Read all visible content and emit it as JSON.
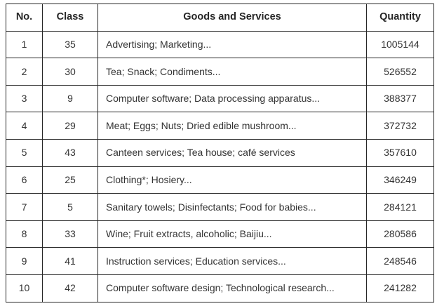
{
  "colors": {
    "border": "#262626",
    "text": "#333333",
    "background": "#ffffff"
  },
  "table": {
    "columns": {
      "no": "No.",
      "class": "Class",
      "goods": "Goods and Services",
      "quantity": "Quantity"
    },
    "rows": [
      {
        "no": "1",
        "class": "35",
        "goods": "Advertising; Marketing...",
        "quantity": "1005144"
      },
      {
        "no": "2",
        "class": "30",
        "goods": "Tea; Snack; Condiments...",
        "quantity": "526552"
      },
      {
        "no": "3",
        "class": "9",
        "goods": "Computer software; Data processing apparatus...",
        "quantity": "388377"
      },
      {
        "no": "4",
        "class": "29",
        "goods": "Meat; Eggs; Nuts; Dried edible mushroom...",
        "quantity": "372732"
      },
      {
        "no": "5",
        "class": "43",
        "goods": "Canteen services; Tea house; café services",
        "quantity": "357610"
      },
      {
        "no": "6",
        "class": "25",
        "goods": "Clothing*; Hosiery...",
        "quantity": "346249"
      },
      {
        "no": "7",
        "class": "5",
        "goods": "Sanitary towels; Disinfectants; Food for babies...",
        "quantity": "284121"
      },
      {
        "no": "8",
        "class": "33",
        "goods": "Wine; Fruit extracts, alcoholic; Baijiu...",
        "quantity": "280586"
      },
      {
        "no": "9",
        "class": "41",
        "goods": "Instruction services; Education services...",
        "quantity": "248546"
      },
      {
        "no": "10",
        "class": "42",
        "goods": "Computer software design; Technological research...",
        "quantity": "241282"
      }
    ]
  },
  "chart_data": {
    "type": "table",
    "title": "",
    "columns": [
      "No.",
      "Class",
      "Goods and Services",
      "Quantity"
    ],
    "rows": [
      [
        "1",
        "35",
        "Advertising; Marketing...",
        1005144
      ],
      [
        "2",
        "30",
        "Tea; Snack; Condiments...",
        526552
      ],
      [
        "3",
        "9",
        "Computer software; Data processing apparatus...",
        388377
      ],
      [
        "4",
        "29",
        "Meat; Eggs; Nuts; Dried edible mushroom...",
        372732
      ],
      [
        "5",
        "43",
        "Canteen services; Tea house; café services",
        357610
      ],
      [
        "6",
        "25",
        "Clothing*; Hosiery...",
        346249
      ],
      [
        "7",
        "5",
        "Sanitary towels; Disinfectants; Food for babies...",
        284121
      ],
      [
        "8",
        "33",
        "Wine; Fruit extracts, alcoholic; Baijiu...",
        280586
      ],
      [
        "9",
        "41",
        "Instruction services; Education services...",
        248546
      ],
      [
        "10",
        "42",
        "Computer software design; Technological research...",
        241282
      ]
    ]
  }
}
